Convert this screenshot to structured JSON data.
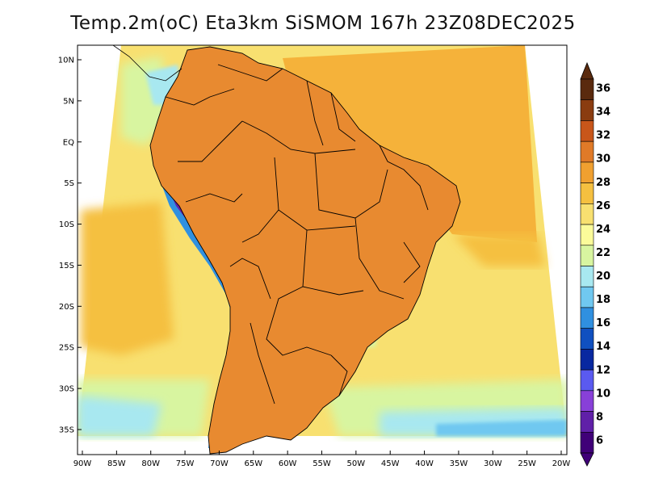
{
  "title": "Temp.2m(oC) Eta3km SiSMOM 167h 23Z08DEC2025",
  "map": {
    "region": "South America",
    "variable": "2m temperature",
    "units": "oC",
    "lat_labels": [
      "10N",
      "5N",
      "EQ",
      "5S",
      "10S",
      "15S",
      "20S",
      "25S",
      "30S",
      "35S"
    ],
    "lon_labels": [
      "90W",
      "85W",
      "80W",
      "75W",
      "70W",
      "65W",
      "60W",
      "55W",
      "50W",
      "45W",
      "40W",
      "35W",
      "30W",
      "25W",
      "20W"
    ],
    "lat_values": [
      10,
      5,
      0,
      -5,
      -10,
      -15,
      -20,
      -25,
      -30,
      -35
    ],
    "lon_values": [
      -90,
      -85,
      -80,
      -75,
      -70,
      -65,
      -60,
      -55,
      -50,
      -45,
      -40,
      -35,
      -30,
      -25,
      -20
    ]
  },
  "colorbar": {
    "labels": [
      "36",
      "34",
      "32",
      "30",
      "28",
      "26",
      "24",
      "22",
      "20",
      "18",
      "16",
      "14",
      "12",
      "10",
      "8",
      "6"
    ],
    "colors": [
      "#5a2a0e",
      "#8a3c10",
      "#c8561a",
      "#e07a28",
      "#f0a030",
      "#f5c040",
      "#f8e070",
      "#fbfb9a",
      "#d8f5a0",
      "#a8e8f0",
      "#70c8f0",
      "#3090e0",
      "#1050c0",
      "#0828a0",
      "#5a5af0",
      "#8840d8",
      "#6020a8",
      "#400078"
    ]
  },
  "palette": {
    "ocean_warm": "#f5b23a",
    "ocean_mid": "#f8e070",
    "ocean_cool": "#d8f5a0",
    "land_hot": "#e07a28",
    "land_very_hot": "#b04818",
    "andes_cold": "#6020a8",
    "border": "#000000"
  }
}
